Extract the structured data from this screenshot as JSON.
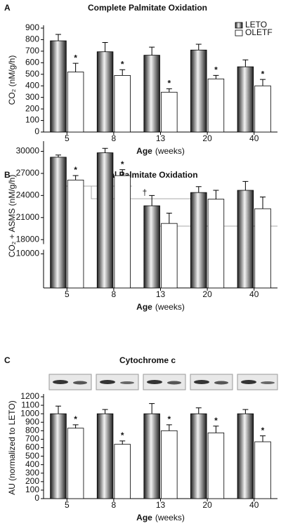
{
  "chart_data": [
    {
      "type": "bar",
      "panel": "A",
      "title": "Complete Palmitate Oxidation",
      "ylabel": "CO₂ (nM/g/h)",
      "xlabel": "Age",
      "xlabel_unit": "(weeks)",
      "categories": [
        "5",
        "8",
        "13",
        "20",
        "40"
      ],
      "series": [
        {
          "name": "LETO",
          "color": "#1e1e1e",
          "values": [
            790,
            695,
            665,
            710,
            565
          ],
          "errors": [
            55,
            80,
            70,
            50,
            60
          ]
        },
        {
          "name": "OLETF",
          "color": "#ffffff",
          "values": [
            520,
            490,
            345,
            460,
            400
          ],
          "errors": [
            75,
            50,
            30,
            30,
            55
          ],
          "significance": [
            "*",
            "*",
            "*",
            "*",
            "*"
          ]
        }
      ],
      "ylim": [
        0,
        900
      ],
      "yticks": [
        0,
        100,
        200,
        300,
        400,
        500,
        600,
        700,
        800,
        900
      ],
      "legend": "top-right"
    },
    {
      "type": "bar",
      "panel": "B",
      "title": "Total Palmitate Oxidation",
      "ylabel": "CO₂ + ASMS (nM/g/h)",
      "xlabel": "Age",
      "xlabel_unit": "(weeks)",
      "annotation": "†",
      "categories": [
        "5",
        "8",
        "13",
        "20",
        "40"
      ],
      "series": [
        {
          "name": "LETO",
          "color": "#1e1e1e",
          "values": [
            29200,
            29800,
            22600,
            24400,
            24700
          ],
          "errors": [
            300,
            600,
            1400,
            800,
            1200
          ]
        },
        {
          "name": "OLETF",
          "color": "#ffffff",
          "values": [
            26100,
            26700,
            20200,
            23500,
            22200
          ],
          "errors": [
            600,
            800,
            1400,
            1200,
            1600
          ],
          "significance": [
            "*",
            "*",
            null,
            null,
            null
          ]
        }
      ],
      "ylim": [
        0,
        31000
      ],
      "ybreak": [
        11000,
        17500
      ],
      "yticks": [
        10000,
        18000,
        21000,
        24000,
        27000,
        30000
      ]
    },
    {
      "type": "bar",
      "panel": "C",
      "title": "Cytochrome c",
      "ylabel": "AU (normalized to LETO)",
      "xlabel": "Age",
      "xlabel_unit": "(weeks)",
      "categories": [
        "5",
        "8",
        "13",
        "20",
        "40"
      ],
      "series": [
        {
          "name": "LETO",
          "color": "#1e1e1e",
          "values": [
            1000,
            1000,
            1000,
            1000,
            1000
          ],
          "errors": [
            90,
            50,
            120,
            70,
            50
          ]
        },
        {
          "name": "OLETF",
          "color": "#ffffff",
          "values": [
            830,
            640,
            800,
            775,
            670
          ],
          "errors": [
            40,
            40,
            70,
            80,
            70
          ],
          "significance": [
            "*",
            "*",
            "*",
            "*",
            "*"
          ]
        }
      ],
      "ylim": [
        0,
        1200
      ],
      "yticks": [
        0,
        100,
        200,
        300,
        400,
        500,
        600,
        700,
        800,
        900,
        1000,
        1100,
        1200
      ]
    }
  ]
}
